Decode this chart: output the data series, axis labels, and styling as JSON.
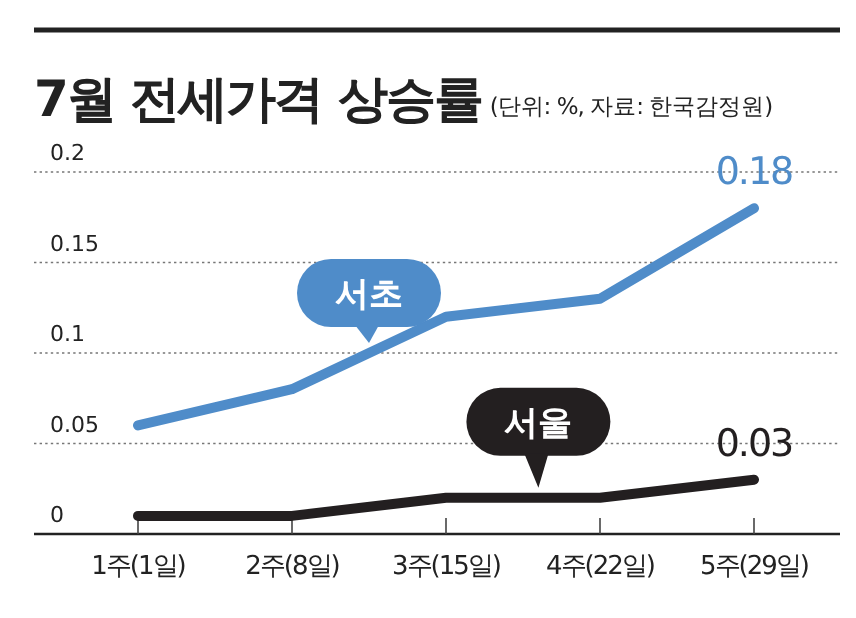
{
  "chart_data": {
    "type": "line",
    "title": "7월 전세가격 상승률",
    "subtitle": "(단위: %, 자료: 한국감정원)",
    "categories": [
      "1주(1일)",
      "2주(8일)",
      "3주(15일)",
      "4주(22일)",
      "5주(29일)"
    ],
    "series": [
      {
        "name": "서초",
        "color": "#4f8cc9",
        "values": [
          0.06,
          0.08,
          0.12,
          0.13,
          0.18
        ],
        "value_labels": [
          null,
          null,
          null,
          null,
          "0.18"
        ]
      },
      {
        "name": "서울",
        "color": "#231f20",
        "values": [
          0.01,
          0.01,
          0.02,
          0.02,
          0.03
        ],
        "value_labels": [
          null,
          null,
          null,
          null,
          "0.03"
        ]
      }
    ],
    "ylim": [
      0,
      0.2
    ],
    "yticks": [
      0,
      0.05,
      0.1,
      0.15,
      0.2
    ],
    "grid": "y",
    "legend": false,
    "marker": "none",
    "line_style": "solid"
  }
}
